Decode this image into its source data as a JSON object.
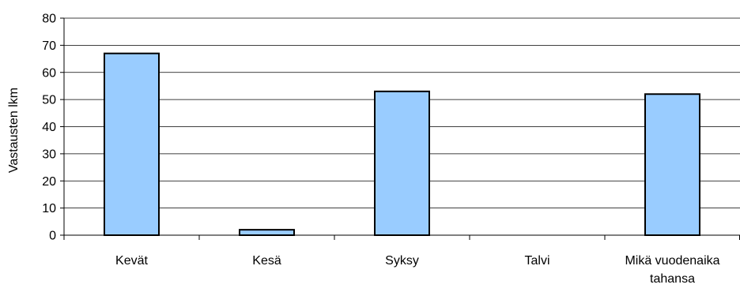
{
  "chart_data": {
    "type": "bar",
    "title": "",
    "xlabel": "",
    "ylabel": "Vastausten lkm",
    "categories": [
      "Kevät",
      "Kesä",
      "Syksy",
      "Talvi",
      "Mikä vuodenaika tahansa"
    ],
    "category_lines": [
      [
        "Kevät"
      ],
      [
        "Kesä"
      ],
      [
        "Syksy"
      ],
      [
        "Talvi"
      ],
      [
        "Mikä vuodenaika",
        "tahansa"
      ]
    ],
    "values": [
      67,
      2,
      53,
      0,
      52
    ],
    "ylim": [
      0,
      80
    ],
    "yticks": [
      0,
      10,
      20,
      30,
      40,
      50,
      60,
      70,
      80
    ],
    "grid": true,
    "legend": "none",
    "colors": {
      "bar_fill": "#99CCFF",
      "bar_stroke": "#000000",
      "grid": "#000000",
      "axis": "#000000"
    }
  }
}
